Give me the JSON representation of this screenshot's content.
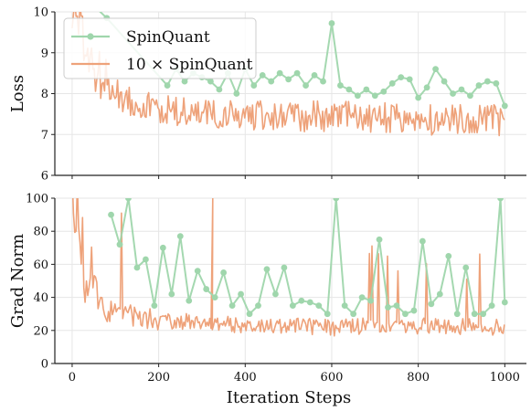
{
  "chart_data": [
    {
      "type": "line",
      "panel": "top",
      "ylabel": "Loss",
      "xlabel": "",
      "xlim": [
        -40,
        1050
      ],
      "ylim": [
        6,
        10
      ],
      "yticks": [
        "6",
        "7",
        "8",
        "9",
        "10"
      ],
      "grid": true,
      "legend_position": "top-left",
      "series": [
        {
          "name": "SpinQuant",
          "color": "#9fd6ac",
          "marker": "circle",
          "x": [
            80,
            220,
            240,
            260,
            280,
            300,
            320,
            340,
            360,
            380,
            400,
            420,
            440,
            460,
            480,
            500,
            520,
            540,
            560,
            580,
            600,
            620,
            640,
            660,
            680,
            700,
            720,
            740,
            760,
            780,
            800,
            820,
            840,
            860,
            880,
            900,
            920,
            940,
            960,
            980,
            1000
          ],
          "values": [
            9.85,
            8.2,
            8.6,
            8.3,
            8.5,
            8.4,
            8.3,
            8.1,
            8.5,
            8.0,
            8.6,
            8.2,
            8.45,
            8.3,
            8.5,
            8.35,
            8.5,
            8.2,
            8.45,
            8.3,
            9.72,
            8.2,
            8.1,
            7.95,
            8.1,
            7.95,
            8.05,
            8.25,
            8.4,
            8.35,
            7.9,
            8.15,
            8.6,
            8.3,
            8.0,
            8.1,
            7.95,
            8.2,
            8.3,
            8.25,
            7.7
          ]
        },
        {
          "name": "10 × SpinQuant",
          "color": "#eea27a",
          "marker": "none",
          "x": [
            5,
            40,
            80,
            120,
            160,
            200,
            240,
            280,
            320,
            360,
            400,
            440,
            480,
            520,
            560,
            600,
            640,
            680,
            720,
            760,
            800,
            840,
            880,
            920,
            960,
            1000
          ],
          "values": [
            10.0,
            8.8,
            8.2,
            7.9,
            7.75,
            7.6,
            7.55,
            7.5,
            7.5,
            7.45,
            7.45,
            7.45,
            7.4,
            7.45,
            7.45,
            7.4,
            7.45,
            7.4,
            7.4,
            7.35,
            7.4,
            7.35,
            7.4,
            7.4,
            7.45,
            7.3
          ]
        }
      ]
    },
    {
      "type": "line",
      "panel": "bottom",
      "ylabel": "Grad Norm",
      "xlabel": "Iteration Steps",
      "xlim": [
        -40,
        1050
      ],
      "ylim": [
        0,
        100
      ],
      "yticks": [
        "0",
        "20",
        "40",
        "60",
        "80",
        "100"
      ],
      "xticks": [
        "0",
        "200",
        "400",
        "600",
        "800",
        "1000"
      ],
      "grid": true,
      "series": [
        {
          "name": "SpinQuant",
          "color": "#9fd6ac",
          "marker": "circle",
          "x": [
            90,
            110,
            130,
            150,
            170,
            190,
            210,
            230,
            250,
            270,
            290,
            310,
            330,
            350,
            370,
            390,
            410,
            430,
            450,
            470,
            490,
            510,
            530,
            550,
            570,
            590,
            610,
            630,
            650,
            670,
            690,
            710,
            730,
            750,
            770,
            790,
            810,
            830,
            850,
            870,
            890,
            910,
            930,
            950,
            970,
            990,
            1000
          ],
          "values": [
            90,
            72,
            100,
            58,
            63,
            35,
            70,
            42,
            77,
            38,
            56,
            45,
            40,
            55,
            35,
            42,
            30,
            35,
            57,
            42,
            58,
            35,
            38,
            37,
            35,
            30,
            100,
            35,
            30,
            40,
            38,
            75,
            34,
            35,
            30,
            32,
            74,
            36,
            42,
            65,
            30,
            58,
            30,
            30,
            35,
            100,
            37
          ]
        },
        {
          "name": "10 × SpinQuant",
          "color": "#eea27a",
          "marker": "none",
          "x": [
            5,
            20,
            40,
            60,
            80,
            100,
            150,
            200,
            250,
            300,
            350,
            400,
            450,
            500,
            550,
            600,
            650,
            700,
            750,
            800,
            850,
            900,
            950,
            1000
          ],
          "values": [
            100,
            60,
            40,
            32,
            30,
            28,
            26,
            25,
            24,
            23,
            22,
            22,
            22,
            21,
            21,
            20,
            21,
            21,
            21,
            21,
            21,
            21,
            21,
            20
          ]
        }
      ]
    }
  ]
}
